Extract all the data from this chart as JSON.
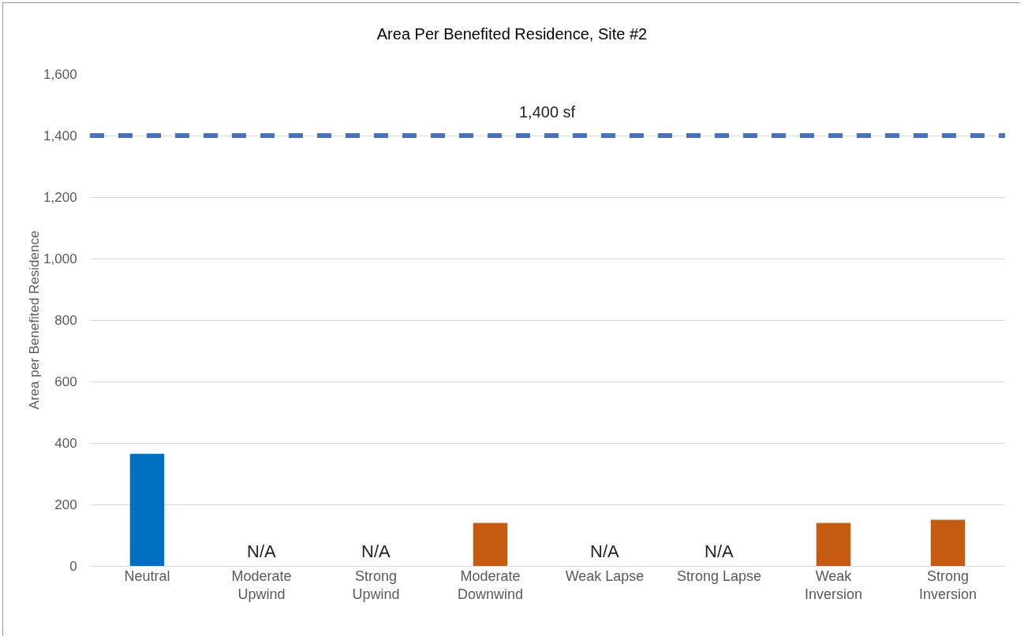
{
  "chart_data": {
    "type": "bar",
    "title": "Area Per Benefited Residence, Site #2",
    "ylabel": "Area per Benefited Residence",
    "categories": [
      "Neutral",
      "Moderate\nUpwind",
      "Strong\nUpwind",
      "Moderate\nDownwind",
      "Weak Lapse",
      "Strong Lapse",
      "Weak\nInversion",
      "Strong\nInversion"
    ],
    "values": [
      365,
      null,
      null,
      140,
      null,
      null,
      140,
      150
    ],
    "value_labels": [
      null,
      "N/A",
      "N/A",
      null,
      "N/A",
      "N/A",
      null,
      null
    ],
    "colors": [
      "#0070c0",
      "#0070c0",
      "#0070c0",
      "#c55a11",
      "#c55a11",
      "#c55a11",
      "#c55a11",
      "#c55a11"
    ],
    "ylim": [
      0,
      1600
    ],
    "yticks": [
      {
        "value": 0,
        "label": "0"
      },
      {
        "value": 200,
        "label": "200"
      },
      {
        "value": 400,
        "label": "400"
      },
      {
        "value": 600,
        "label": "600"
      },
      {
        "value": 800,
        "label": "800"
      },
      {
        "value": 1000,
        "label": "1,000"
      },
      {
        "value": 1200,
        "label": "1,200"
      },
      {
        "value": 1400,
        "label": "1,400"
      },
      {
        "value": 1600,
        "label": "1,600"
      }
    ],
    "ref_lines": [
      {
        "axis": "y",
        "value": 1400,
        "label": "1,400 sf",
        "color": "#4472c4",
        "line_style": "dashed"
      }
    ],
    "grid": "y",
    "legend": false
  }
}
